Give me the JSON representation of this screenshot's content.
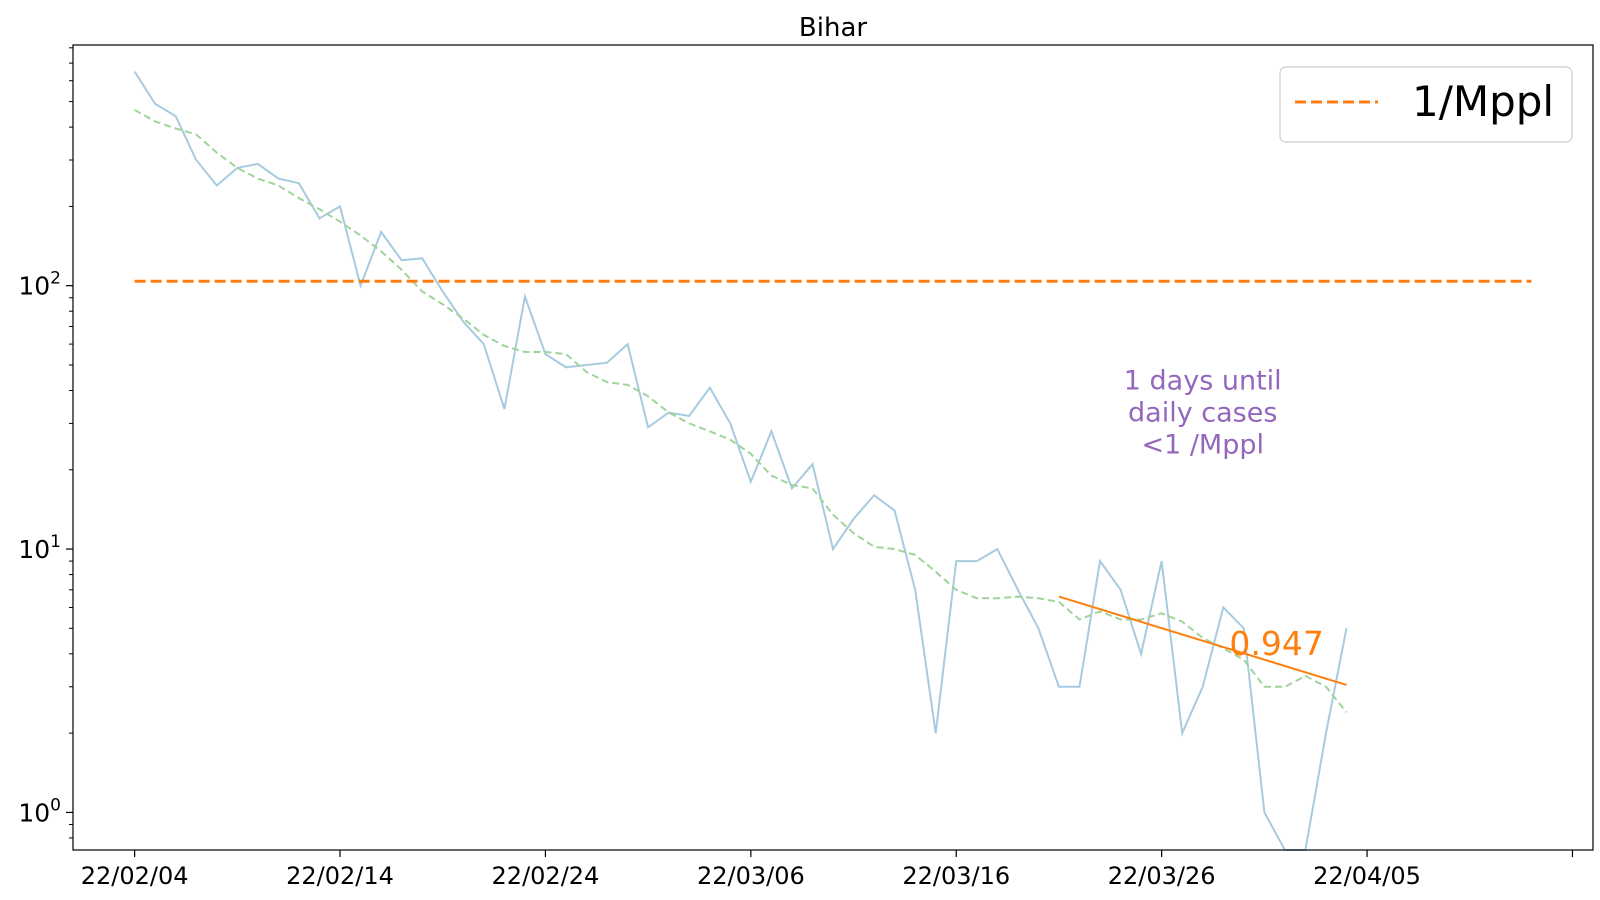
{
  "chart_data": {
    "type": "line",
    "title": "Bihar",
    "xlabel": "",
    "ylabel": "",
    "y_scale": "log",
    "ylim": [
      0.72,
      820
    ],
    "xlim": [
      "2022-02-01",
      "2022-04-16"
    ],
    "x_ticks": [
      "22/02/04",
      "22/02/14",
      "22/02/24",
      "22/03/06",
      "22/03/16",
      "22/03/26",
      "22/04/05",
      ""
    ],
    "y_ticks": [
      {
        "value": 1,
        "base": "10",
        "exp": "0"
      },
      {
        "value": 10,
        "base": "10",
        "exp": "1"
      },
      {
        "value": 100,
        "base": "10",
        "exp": "2"
      }
    ],
    "grid": false,
    "legend_position": "top-right",
    "x": [
      "2022-02-04",
      "2022-02-05",
      "2022-02-06",
      "2022-02-07",
      "2022-02-08",
      "2022-02-09",
      "2022-02-10",
      "2022-02-11",
      "2022-02-12",
      "2022-02-13",
      "2022-02-14",
      "2022-02-15",
      "2022-02-16",
      "2022-02-17",
      "2022-02-18",
      "2022-02-19",
      "2022-02-20",
      "2022-02-21",
      "2022-02-22",
      "2022-02-23",
      "2022-02-24",
      "2022-02-25",
      "2022-02-26",
      "2022-02-27",
      "2022-02-28",
      "2022-03-01",
      "2022-03-02",
      "2022-03-03",
      "2022-03-04",
      "2022-03-05",
      "2022-03-06",
      "2022-03-07",
      "2022-03-08",
      "2022-03-09",
      "2022-03-10",
      "2022-03-11",
      "2022-03-12",
      "2022-03-13",
      "2022-03-14",
      "2022-03-15",
      "2022-03-16",
      "2022-03-17",
      "2022-03-18",
      "2022-03-19",
      "2022-03-20",
      "2022-03-21",
      "2022-03-22",
      "2022-03-23",
      "2022-03-24",
      "2022-03-25",
      "2022-03-26",
      "2022-03-27",
      "2022-03-28",
      "2022-03-29",
      "2022-03-30",
      "2022-03-31",
      "2022-04-01",
      "2022-04-02",
      "2022-04-03",
      "2022-04-04"
    ],
    "series": [
      {
        "color": "#a6cbe0",
        "style": "solid",
        "values": [
          650,
          490,
          440,
          300,
          240,
          280,
          290,
          255,
          245,
          180,
          200,
          100,
          160,
          125,
          127,
          95,
          73,
          60,
          34,
          91,
          55,
          49,
          50,
          51,
          60,
          29,
          33,
          32,
          41,
          30,
          18,
          28,
          17,
          21,
          10,
          13,
          16,
          14,
          7,
          2,
          9,
          9,
          10,
          7,
          5,
          3,
          3,
          9,
          7,
          4,
          9,
          2,
          3,
          6,
          5,
          1,
          0.5,
          0.5,
          2,
          5
        ]
      },
      {
        "color": "#9fd49a",
        "style": "dashed",
        "values": [
          465,
          420,
          395,
          375,
          320,
          280,
          255,
          240,
          215,
          195,
          175,
          155,
          135,
          115,
          95,
          85,
          75,
          65,
          59,
          56,
          56,
          55,
          47,
          43,
          42,
          38,
          33,
          30,
          28,
          26,
          23,
          19,
          17.5,
          17,
          13.5,
          11.5,
          10.2,
          10,
          9.5,
          8.2,
          7,
          6.5,
          6.5,
          6.6,
          6.5,
          6.3,
          5.4,
          5.8,
          5.4,
          5.4,
          5.7,
          5.3,
          4.6,
          4.2,
          3.8,
          3.0,
          3.0,
          3.3,
          3.0,
          2.4
        ]
      },
      {
        "name": "1/Mppl",
        "color": "#ff7f0e",
        "style": "dashed",
        "x": [
          "2022-02-04",
          "2022-04-13"
        ],
        "values": [
          104,
          104
        ]
      },
      {
        "color": "#ff7f0e",
        "style": "solid",
        "x": [
          "2022-03-21",
          "2022-04-04"
        ],
        "values": [
          6.6,
          3.05
        ]
      }
    ],
    "annotations": [
      {
        "text": "0.947",
        "color": "#ff7f0e",
        "x": "2022-03-31",
        "y": 4.4
      },
      {
        "lines": [
          "1 days until",
          "daily cases",
          "<1 /Mppl"
        ],
        "color": "#9467bd",
        "x": "2022-03-28",
        "y": 33
      }
    ]
  }
}
